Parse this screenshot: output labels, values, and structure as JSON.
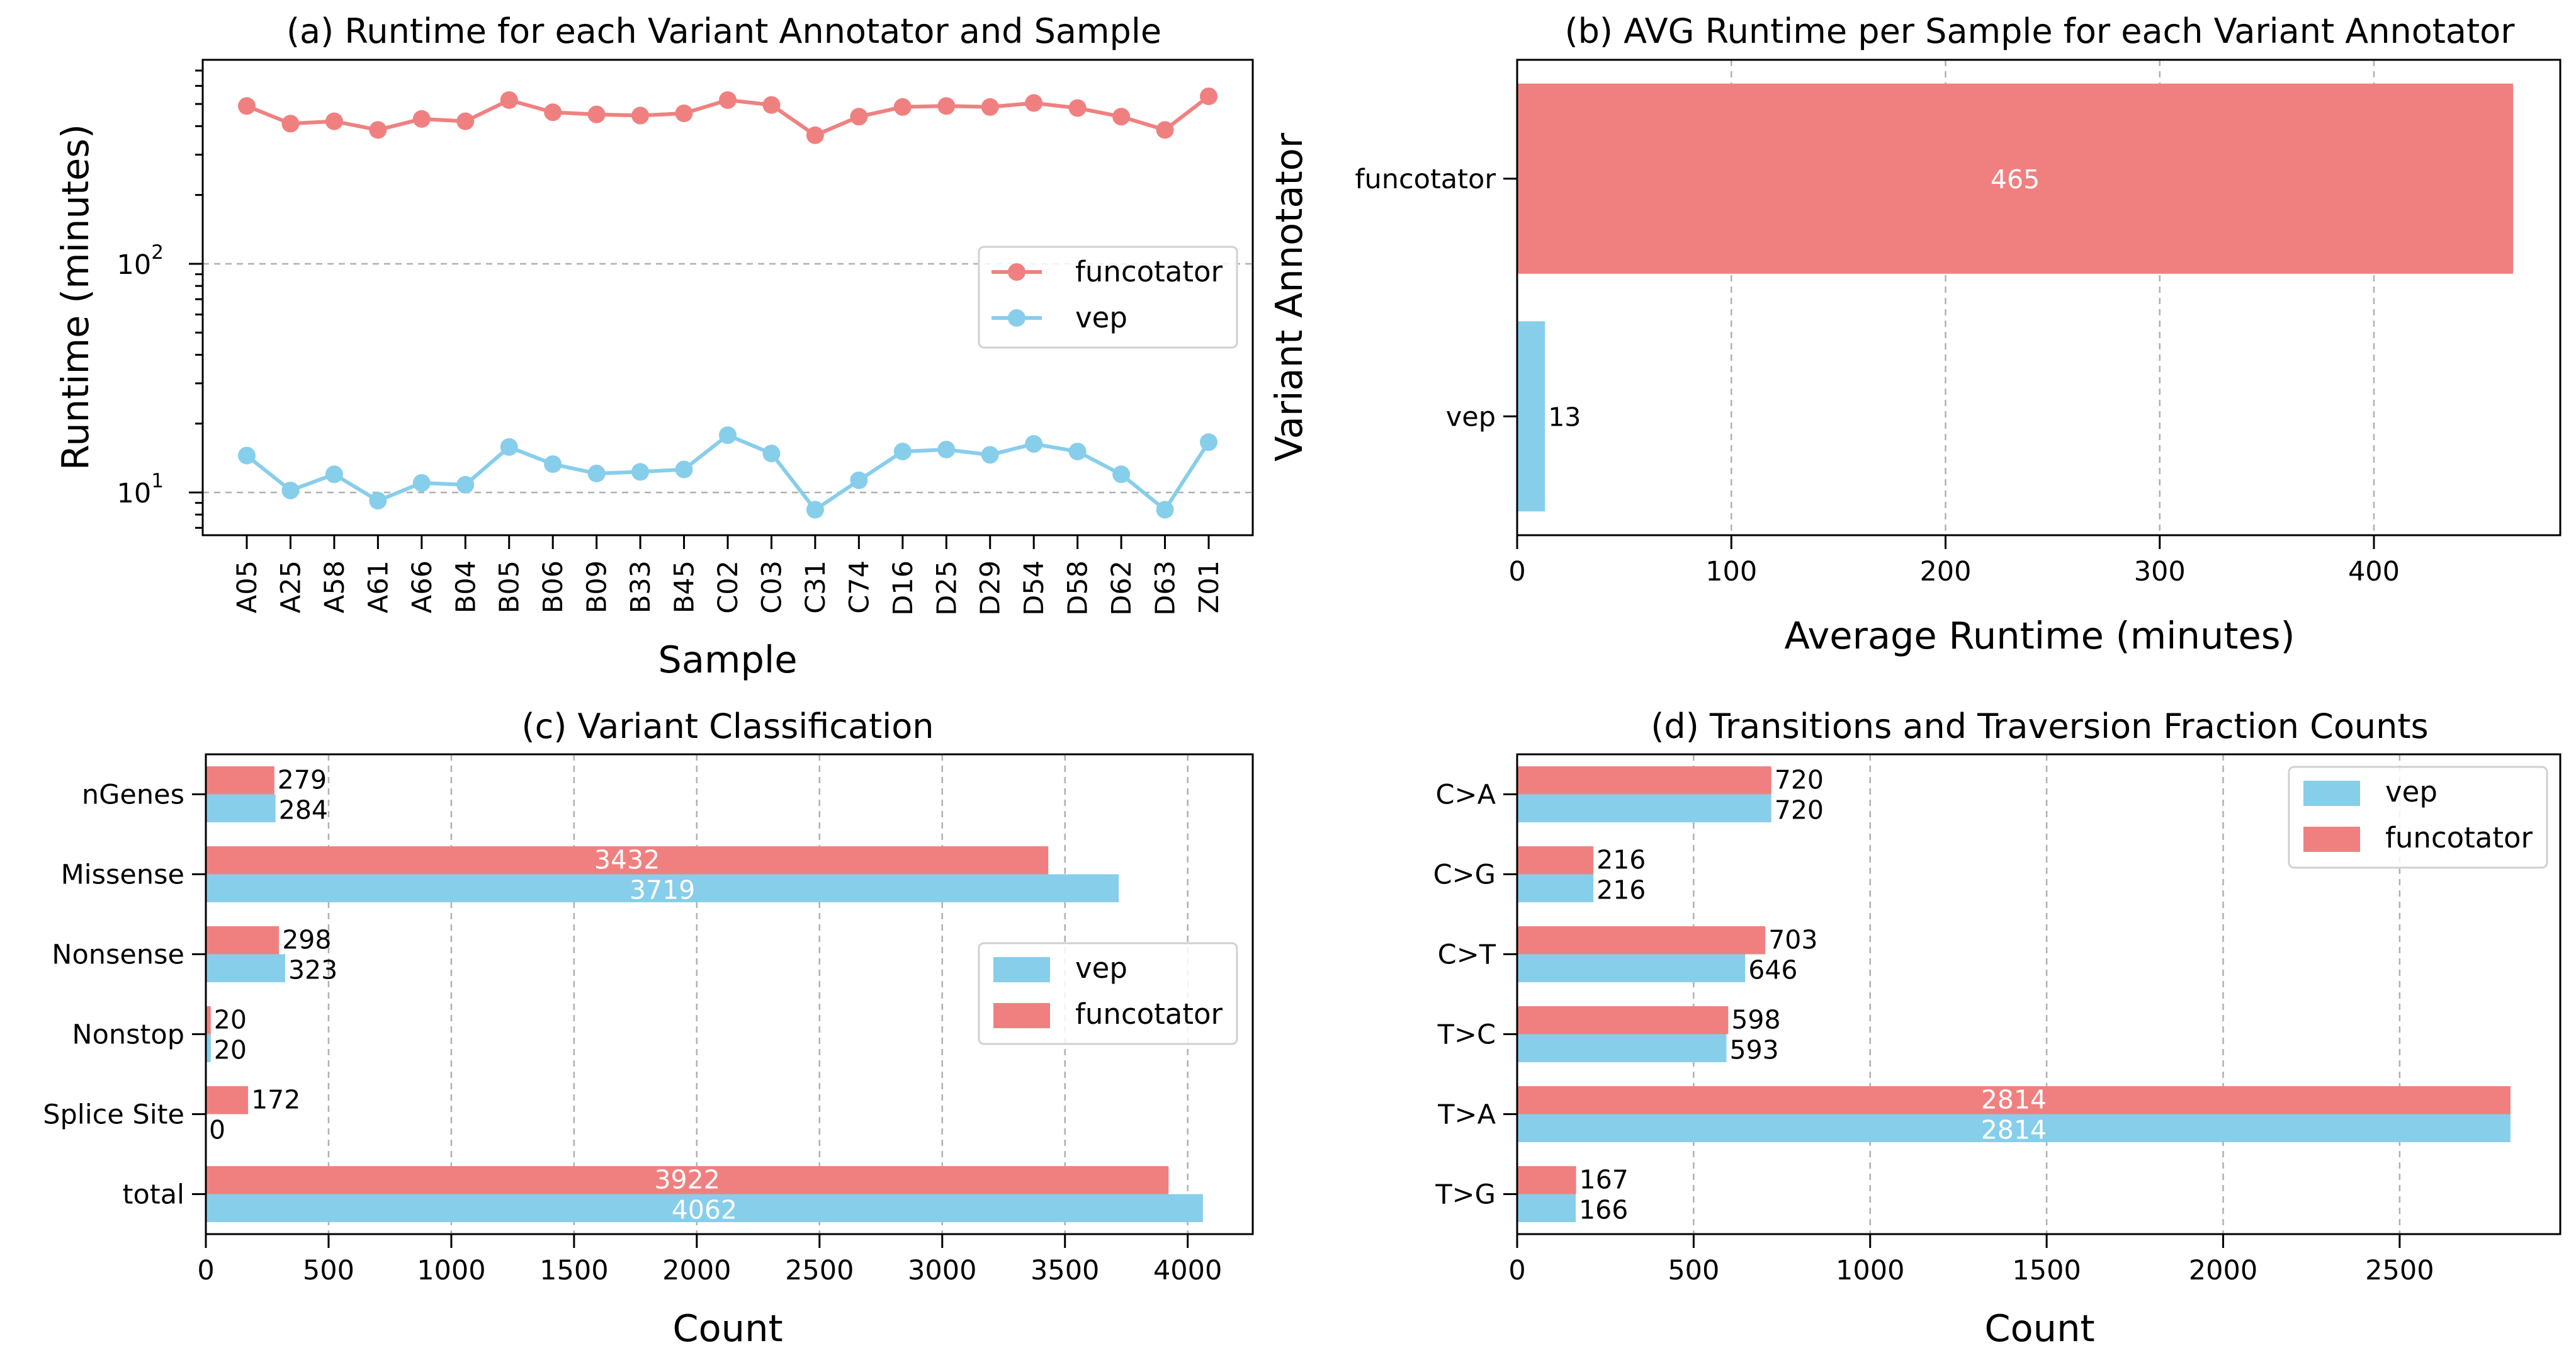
{
  "colors": {
    "vep": "#87ceeb",
    "funcotator": "#f08080"
  },
  "chart_data": [
    {
      "id": "a",
      "type": "line",
      "title": "(a) Runtime for each Variant Annotator and Sample",
      "xlabel": "Sample",
      "ylabel": "Runtime (minutes)",
      "yscale": "log",
      "ylim": [
        6.5,
        780
      ],
      "yticks": [
        {
          "value": 10,
          "base": "10",
          "exp": "1"
        },
        {
          "value": 100,
          "base": "10",
          "exp": "2"
        }
      ],
      "grid": "y",
      "legend_position": "center-right",
      "categories": [
        "A05",
        "A25",
        "A58",
        "A61",
        "A66",
        "B04",
        "B05",
        "B06",
        "B09",
        "B33",
        "B45",
        "C02",
        "C03",
        "C31",
        "C74",
        "D16",
        "D25",
        "D29",
        "D54",
        "D58",
        "D62",
        "D63",
        "Z01"
      ],
      "series": [
        {
          "name": "funcotator",
          "color_key": "funcotator",
          "values": [
            490,
            410,
            420,
            385,
            430,
            420,
            520,
            460,
            450,
            445,
            455,
            520,
            495,
            365,
            440,
            485,
            490,
            485,
            505,
            480,
            440,
            385,
            540
          ]
        },
        {
          "name": "vep",
          "color_key": "vep",
          "values": [
            14.5,
            10.2,
            12.0,
            9.2,
            11.0,
            10.8,
            15.8,
            13.3,
            12.1,
            12.3,
            12.6,
            17.8,
            14.8,
            8.4,
            11.3,
            15.1,
            15.4,
            14.6,
            16.3,
            15.1,
            12.0,
            8.4,
            16.6
          ]
        }
      ]
    },
    {
      "id": "b",
      "type": "bar",
      "orientation": "horizontal",
      "title": "(b) AVG Runtime per Sample for each Variant Annotator",
      "xlabel": "Average Runtime (minutes)",
      "ylabel": "Variant Annotator",
      "xlim": [
        0,
        487
      ],
      "xticks": [
        0,
        100,
        200,
        300,
        400
      ],
      "grid": "x",
      "categories": [
        "vep",
        "funcotator"
      ],
      "values": [
        13,
        465
      ],
      "labels": [
        "13",
        "465"
      ],
      "color_keys": [
        "vep",
        "funcotator"
      ]
    },
    {
      "id": "c",
      "type": "bar",
      "orientation": "horizontal",
      "title": "(c) Variant Classification",
      "xlabel": "Count",
      "ylabel": "",
      "xlim": [
        0,
        4265
      ],
      "xticks": [
        0,
        500,
        1000,
        1500,
        2000,
        2500,
        3000,
        3500,
        4000
      ],
      "grid": "x",
      "legend_position": "center-right",
      "legend_order": [
        "vep",
        "funcotator"
      ],
      "categories": [
        "nGenes",
        "Missense",
        "Nonsense",
        "Nonstop",
        "Splice Site",
        "total"
      ],
      "series": [
        {
          "name": "funcotator",
          "color_key": "funcotator",
          "values": [
            279,
            3432,
            298,
            20,
            172,
            3922
          ],
          "labels": [
            "279",
            "3432",
            "298",
            "20",
            "172",
            "3922"
          ]
        },
        {
          "name": "vep",
          "color_key": "vep",
          "values": [
            284,
            3719,
            323,
            20,
            0,
            4062
          ],
          "labels": [
            "284",
            "3719",
            "323",
            "20",
            "0",
            "4062"
          ]
        }
      ]
    },
    {
      "id": "d",
      "type": "bar",
      "orientation": "horizontal",
      "title": "(d) Transitions and Traversion Fraction Counts",
      "xlabel": "Count",
      "ylabel": "",
      "xlim": [
        0,
        2955
      ],
      "xticks": [
        0,
        500,
        1000,
        1500,
        2000,
        2500
      ],
      "grid": "x",
      "legend_position": "top-right",
      "legend_order": [
        "vep",
        "funcotator"
      ],
      "categories": [
        "C>A",
        "C>G",
        "C>T",
        "T>C",
        "T>A",
        "T>G"
      ],
      "series": [
        {
          "name": "funcotator",
          "color_key": "funcotator",
          "values": [
            720,
            216,
            703,
            598,
            2814,
            167
          ],
          "labels": [
            "720",
            "216",
            "703",
            "598",
            "2814",
            "167"
          ]
        },
        {
          "name": "vep",
          "color_key": "vep",
          "values": [
            720,
            216,
            646,
            593,
            2814,
            166
          ],
          "labels": [
            "720",
            "216",
            "646",
            "593",
            "2814",
            "166"
          ]
        }
      ]
    }
  ]
}
